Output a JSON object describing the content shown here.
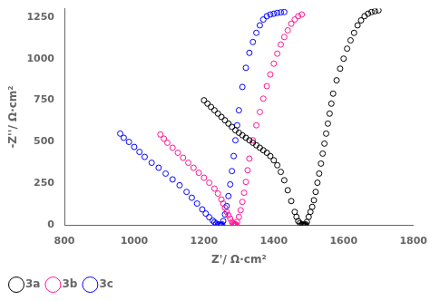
{
  "chart_data": {
    "type": "scatter",
    "xlabel": "Z'/ Ω·cm²",
    "ylabel": "-Z''/ Ω·cm²",
    "xlim": [
      800,
      1800
    ],
    "ylim": [
      0,
      1300
    ],
    "xticks": [
      800,
      1000,
      1200,
      1400,
      1600,
      1800
    ],
    "yticks": [
      0,
      250,
      500,
      750,
      1000,
      1250
    ],
    "grid": false,
    "legend": "lower left",
    "marker": "circle",
    "series": [
      {
        "name": "3a",
        "color": "#000000",
        "x": [
          1200,
          1210,
          1220,
          1230,
          1240,
          1250,
          1260,
          1270,
          1280,
          1290,
          1300,
          1310,
          1320,
          1330,
          1340,
          1350,
          1360,
          1370,
          1380,
          1390,
          1400,
          1410,
          1420,
          1430,
          1440,
          1450,
          1460,
          1465,
          1470,
          1475,
          1480,
          1482,
          1484,
          1486,
          1488,
          1490,
          1490,
          1492,
          1495,
          1500,
          1505,
          1510,
          1515,
          1520,
          1525,
          1530,
          1535,
          1540,
          1545,
          1550,
          1555,
          1560,
          1565,
          1570,
          1580,
          1590,
          1600,
          1610,
          1620,
          1630,
          1640,
          1650,
          1660,
          1670,
          1680,
          1690,
          1700
        ],
        "y": [
          750,
          730,
          710,
          690,
          670,
          650,
          630,
          610,
          590,
          570,
          555,
          540,
          525,
          510,
          495,
          480,
          465,
          450,
          435,
          415,
          390,
          360,
          320,
          270,
          210,
          145,
          80,
          50,
          25,
          12,
          5,
          4,
          3,
          2,
          1,
          0,
          0,
          5,
          20,
          50,
          80,
          110,
          150,
          200,
          255,
          310,
          370,
          430,
          490,
          550,
          610,
          670,
          730,
          790,
          870,
          940,
          1000,
          1060,
          1110,
          1155,
          1200,
          1230,
          1255,
          1270,
          1280,
          1285,
          1290
        ]
      },
      {
        "name": "3b",
        "color": "#ff1493",
        "x": [
          1075,
          1085,
          1095,
          1110,
          1125,
          1140,
          1155,
          1170,
          1185,
          1200,
          1215,
          1230,
          1240,
          1250,
          1255,
          1260,
          1265,
          1270,
          1275,
          1280,
          1283,
          1285,
          1287,
          1289,
          1290,
          1290,
          1292,
          1295,
          1300,
          1305,
          1310,
          1315,
          1320,
          1325,
          1330,
          1340,
          1350,
          1360,
          1370,
          1380,
          1390,
          1400,
          1410,
          1420,
          1430,
          1440,
          1450,
          1460,
          1470,
          1480
        ],
        "y": [
          545,
          520,
          495,
          465,
          435,
          405,
          375,
          345,
          315,
          285,
          255,
          220,
          190,
          155,
          130,
          105,
          80,
          60,
          40,
          20,
          12,
          7,
          4,
          2,
          0,
          0,
          5,
          20,
          50,
          90,
          140,
          195,
          260,
          330,
          400,
          510,
          600,
          680,
          760,
          835,
          905,
          970,
          1030,
          1085,
          1130,
          1170,
          1210,
          1235,
          1255,
          1265
        ]
      },
      {
        "name": "3c",
        "color": "#0000ff",
        "x": [
          960,
          970,
          985,
          1000,
          1015,
          1030,
          1050,
          1070,
          1090,
          1110,
          1130,
          1150,
          1165,
          1180,
          1195,
          1205,
          1215,
          1225,
          1230,
          1235,
          1240,
          1243,
          1246,
          1248,
          1250,
          1250,
          1252,
          1255,
          1260,
          1265,
          1270,
          1275,
          1280,
          1285,
          1290,
          1295,
          1300,
          1310,
          1320,
          1330,
          1340,
          1350,
          1360,
          1370,
          1380,
          1390,
          1400,
          1410,
          1420,
          1430
        ],
        "y": [
          550,
          525,
          500,
          470,
          440,
          410,
          375,
          345,
          310,
          275,
          240,
          200,
          165,
          130,
          95,
          70,
          48,
          28,
          18,
          10,
          5,
          3,
          2,
          1,
          0,
          0,
          5,
          25,
          65,
          115,
          175,
          245,
          325,
          415,
          510,
          600,
          690,
          830,
          945,
          1035,
          1100,
          1155,
          1200,
          1235,
          1255,
          1265,
          1270,
          1275,
          1278,
          1280
        ]
      }
    ]
  }
}
